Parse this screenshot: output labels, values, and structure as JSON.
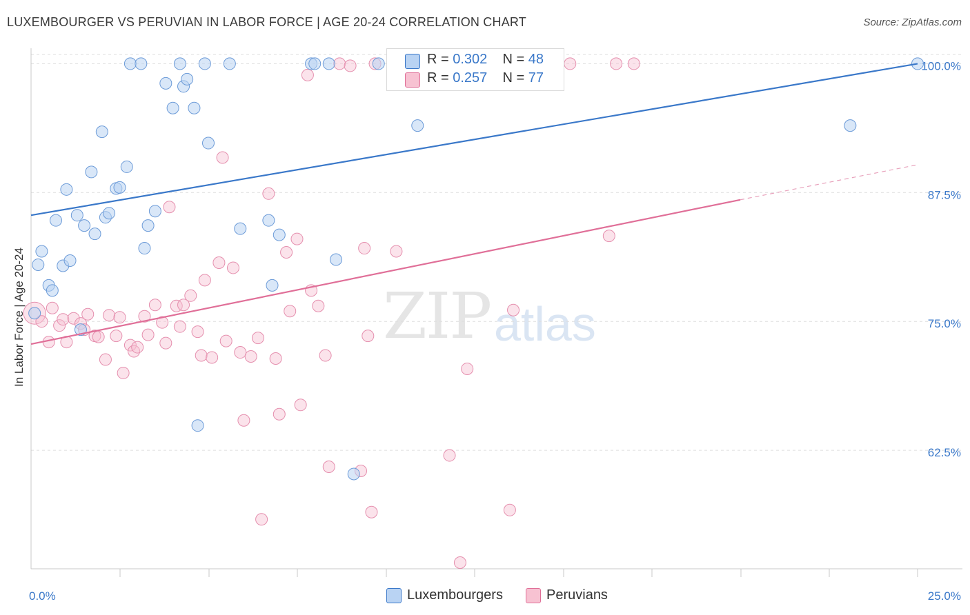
{
  "title": "LUXEMBOURGER VS PERUVIAN IN LABOR FORCE | AGE 20-24 CORRELATION CHART",
  "source": "Source: ZipAtlas.com",
  "watermark": {
    "zip": "ZIP",
    "atlas": "atlas"
  },
  "legend": {
    "lux": {
      "r_label": "R = ",
      "r": "0.302",
      "n_label": "N = ",
      "n": "48"
    },
    "per": {
      "r_label": "R = ",
      "r": "0.257",
      "n_label": "N = ",
      "n": "77"
    }
  },
  "colors": {
    "lux": "#3a78c9",
    "per": "#e06f98",
    "lux_fill": "#b9d3f3",
    "per_fill": "#f7c2d2"
  },
  "chart_data": {
    "type": "scatter",
    "title": "LUXEMBOURGER VS PERUVIAN IN LABOR FORCE | AGE 20-24 CORRELATION CHART",
    "xlabel": "",
    "ylabel": "In Labor Force | Age 20-24",
    "xlim": [
      0,
      25
    ],
    "ylim": [
      51,
      101.5
    ],
    "x_tick_labels": [
      "0.0%",
      "25.0%"
    ],
    "y_ticks": [
      62.5,
      75.0,
      87.5,
      100.0
    ],
    "y_tick_labels": [
      "62.5%",
      "75.0%",
      "87.5%",
      "100.0%"
    ],
    "grid": true,
    "legend_position": "top-center",
    "series": [
      {
        "name": "Luxembourgers",
        "points": [
          [
            0.1,
            75.8
          ],
          [
            0.2,
            80.5
          ],
          [
            0.3,
            81.8
          ],
          [
            0.5,
            78.5
          ],
          [
            0.6,
            78.0
          ],
          [
            0.7,
            84.8
          ],
          [
            0.9,
            80.4
          ],
          [
            1.0,
            87.8
          ],
          [
            1.1,
            80.9
          ],
          [
            1.3,
            85.3
          ],
          [
            1.4,
            74.2
          ],
          [
            1.5,
            84.3
          ],
          [
            1.7,
            89.5
          ],
          [
            1.8,
            83.5
          ],
          [
            2.0,
            93.4
          ],
          [
            2.1,
            85.1
          ],
          [
            2.2,
            85.5
          ],
          [
            2.4,
            87.9
          ],
          [
            2.5,
            88.0
          ],
          [
            2.7,
            90.0
          ],
          [
            2.8,
            100.0
          ],
          [
            3.1,
            100.0
          ],
          [
            3.2,
            82.1
          ],
          [
            3.3,
            84.3
          ],
          [
            3.5,
            85.7
          ],
          [
            3.8,
            98.1
          ],
          [
            4.0,
            95.7
          ],
          [
            4.2,
            100.0
          ],
          [
            4.3,
            97.8
          ],
          [
            4.4,
            98.5
          ],
          [
            4.6,
            95.7
          ],
          [
            4.7,
            64.9
          ],
          [
            4.9,
            100.0
          ],
          [
            5.0,
            92.3
          ],
          [
            5.6,
            100.0
          ],
          [
            5.9,
            84.0
          ],
          [
            6.7,
            84.8
          ],
          [
            6.8,
            78.5
          ],
          [
            7.0,
            83.4
          ],
          [
            7.9,
            100.0
          ],
          [
            8.0,
            100.0
          ],
          [
            8.4,
            100.0
          ],
          [
            8.6,
            81.0
          ],
          [
            9.1,
            60.2
          ],
          [
            9.8,
            100.0
          ],
          [
            10.9,
            94.0
          ],
          [
            23.1,
            94.0
          ],
          [
            25.0,
            100.0
          ]
        ],
        "trend": {
          "x": [
            0,
            25
          ],
          "y": [
            85.3,
            100.0
          ]
        }
      },
      {
        "name": "Peruvians",
        "points": [
          [
            0.1,
            75.8
          ],
          [
            0.3,
            75.0
          ],
          [
            0.5,
            73.0
          ],
          [
            0.6,
            76.3
          ],
          [
            0.8,
            74.6
          ],
          [
            0.9,
            75.2
          ],
          [
            1.0,
            73.0
          ],
          [
            1.2,
            75.3
          ],
          [
            1.4,
            74.8
          ],
          [
            1.5,
            74.2
          ],
          [
            1.6,
            75.7
          ],
          [
            1.8,
            73.6
          ],
          [
            1.9,
            73.5
          ],
          [
            2.1,
            71.3
          ],
          [
            2.2,
            75.6
          ],
          [
            2.4,
            73.6
          ],
          [
            2.5,
            75.4
          ],
          [
            2.6,
            70.0
          ],
          [
            2.8,
            72.7
          ],
          [
            2.9,
            72.1
          ],
          [
            3.0,
            72.5
          ],
          [
            3.2,
            75.5
          ],
          [
            3.3,
            73.7
          ],
          [
            3.5,
            76.6
          ],
          [
            3.7,
            74.9
          ],
          [
            3.8,
            72.9
          ],
          [
            3.9,
            86.1
          ],
          [
            4.1,
            76.5
          ],
          [
            4.2,
            74.5
          ],
          [
            4.3,
            76.6
          ],
          [
            4.5,
            77.5
          ],
          [
            4.7,
            74.0
          ],
          [
            4.8,
            71.7
          ],
          [
            4.9,
            79.0
          ],
          [
            5.1,
            71.5
          ],
          [
            5.3,
            80.7
          ],
          [
            5.4,
            90.9
          ],
          [
            5.5,
            73.1
          ],
          [
            5.7,
            80.2
          ],
          [
            5.9,
            72.0
          ],
          [
            6.0,
            65.4
          ],
          [
            6.2,
            71.6
          ],
          [
            6.4,
            73.4
          ],
          [
            6.5,
            55.8
          ],
          [
            6.7,
            87.4
          ],
          [
            6.9,
            71.4
          ],
          [
            7.0,
            66.0
          ],
          [
            7.2,
            81.7
          ],
          [
            7.3,
            76.0
          ],
          [
            7.5,
            83.0
          ],
          [
            7.6,
            66.9
          ],
          [
            7.8,
            98.9
          ],
          [
            7.9,
            78.0
          ],
          [
            8.1,
            76.5
          ],
          [
            8.3,
            71.7
          ],
          [
            8.4,
            60.9
          ],
          [
            8.7,
            100.0
          ],
          [
            9.0,
            99.8
          ],
          [
            9.3,
            60.5
          ],
          [
            9.4,
            82.1
          ],
          [
            9.5,
            73.6
          ],
          [
            9.6,
            56.5
          ],
          [
            9.7,
            100.0
          ],
          [
            10.3,
            81.8
          ],
          [
            11.2,
            100.0
          ],
          [
            11.8,
            62.0
          ],
          [
            12.0,
            100.0
          ],
          [
            12.1,
            51.6
          ],
          [
            12.3,
            70.4
          ],
          [
            13.0,
            100.0
          ],
          [
            13.5,
            56.7
          ],
          [
            13.6,
            76.1
          ],
          [
            14.0,
            100.0
          ],
          [
            15.2,
            100.0
          ],
          [
            16.3,
            83.3
          ],
          [
            16.5,
            100.0
          ],
          [
            17.0,
            100.0
          ]
        ],
        "trend": {
          "x": [
            0,
            20
          ],
          "y": [
            72.8,
            86.8
          ]
        },
        "trend_extension": {
          "x": [
            20,
            25
          ],
          "y": [
            86.8,
            90.2
          ]
        }
      }
    ]
  },
  "bottom_legend": {
    "lux": "Luxembourgers",
    "per": "Peruvians"
  }
}
